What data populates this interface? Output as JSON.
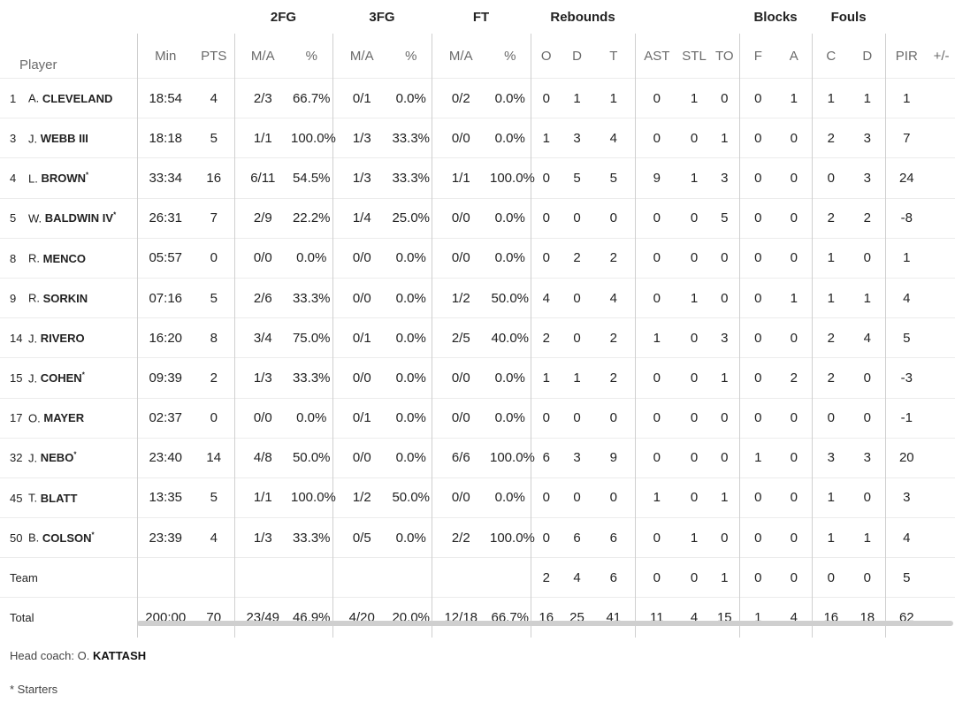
{
  "groups": {
    "fg2": "2FG",
    "fg3": "3FG",
    "ft": "FT",
    "reb": "Rebounds",
    "blk": "Blocks",
    "fouls": "Fouls"
  },
  "headers": {
    "player": "Player",
    "min": "Min",
    "pts": "PTS",
    "fg2_ma": "M/A",
    "fg2_pct": "%",
    "fg3_ma": "M/A",
    "fg3_pct": "%",
    "ft_ma": "M/A",
    "ft_pct": "%",
    "reb_o": "O",
    "reb_d": "D",
    "reb_t": "T",
    "ast": "AST",
    "stl": "STL",
    "to": "TO",
    "blk_f": "F",
    "blk_a": "A",
    "foul_c": "C",
    "foul_d": "D",
    "pir": "PIR",
    "pm": "+/-"
  },
  "players": [
    {
      "num": "1",
      "initial": "A.",
      "surname": "CLEVELAND",
      "star": "",
      "min": "18:54",
      "pts": "4",
      "fg2": "2/3",
      "fg2p": "66.7%",
      "fg3": "0/1",
      "fg3p": "0.0%",
      "ft": "0/2",
      "ftp": "0.0%",
      "o": "0",
      "d": "1",
      "t": "1",
      "ast": "0",
      "stl": "1",
      "to": "0",
      "bf": "0",
      "ba": "1",
      "fc": "1",
      "fd": "1",
      "pir": "1"
    },
    {
      "num": "3",
      "initial": "J.",
      "surname": "WEBB III",
      "star": "",
      "min": "18:18",
      "pts": "5",
      "fg2": "1/1",
      "fg2p": "100.0%",
      "fg3": "1/3",
      "fg3p": "33.3%",
      "ft": "0/0",
      "ftp": "0.0%",
      "o": "1",
      "d": "3",
      "t": "4",
      "ast": "0",
      "stl": "0",
      "to": "1",
      "bf": "0",
      "ba": "0",
      "fc": "2",
      "fd": "3",
      "pir": "7"
    },
    {
      "num": "4",
      "initial": "L.",
      "surname": "BROWN",
      "star": "*",
      "min": "33:34",
      "pts": "16",
      "fg2": "6/11",
      "fg2p": "54.5%",
      "fg3": "1/3",
      "fg3p": "33.3%",
      "ft": "1/1",
      "ftp": "100.0%",
      "o": "0",
      "d": "5",
      "t": "5",
      "ast": "9",
      "stl": "1",
      "to": "3",
      "bf": "0",
      "ba": "0",
      "fc": "0",
      "fd": "3",
      "pir": "24"
    },
    {
      "num": "5",
      "initial": "W.",
      "surname": "BALDWIN IV",
      "star": "*",
      "min": "26:31",
      "pts": "7",
      "fg2": "2/9",
      "fg2p": "22.2%",
      "fg3": "1/4",
      "fg3p": "25.0%",
      "ft": "0/0",
      "ftp": "0.0%",
      "o": "0",
      "d": "0",
      "t": "0",
      "ast": "0",
      "stl": "0",
      "to": "5",
      "bf": "0",
      "ba": "0",
      "fc": "2",
      "fd": "2",
      "pir": "-8"
    },
    {
      "num": "8",
      "initial": "R.",
      "surname": "MENCO",
      "star": "",
      "min": "05:57",
      "pts": "0",
      "fg2": "0/0",
      "fg2p": "0.0%",
      "fg3": "0/0",
      "fg3p": "0.0%",
      "ft": "0/0",
      "ftp": "0.0%",
      "o": "0",
      "d": "2",
      "t": "2",
      "ast": "0",
      "stl": "0",
      "to": "0",
      "bf": "0",
      "ba": "0",
      "fc": "1",
      "fd": "0",
      "pir": "1"
    },
    {
      "num": "9",
      "initial": "R.",
      "surname": "SORKIN",
      "star": "",
      "min": "07:16",
      "pts": "5",
      "fg2": "2/6",
      "fg2p": "33.3%",
      "fg3": "0/0",
      "fg3p": "0.0%",
      "ft": "1/2",
      "ftp": "50.0%",
      "o": "4",
      "d": "0",
      "t": "4",
      "ast": "0",
      "stl": "1",
      "to": "0",
      "bf": "0",
      "ba": "1",
      "fc": "1",
      "fd": "1",
      "pir": "4"
    },
    {
      "num": "14",
      "initial": "J.",
      "surname": "RIVERO",
      "star": "",
      "min": "16:20",
      "pts": "8",
      "fg2": "3/4",
      "fg2p": "75.0%",
      "fg3": "0/1",
      "fg3p": "0.0%",
      "ft": "2/5",
      "ftp": "40.0%",
      "o": "2",
      "d": "0",
      "t": "2",
      "ast": "1",
      "stl": "0",
      "to": "3",
      "bf": "0",
      "ba": "0",
      "fc": "2",
      "fd": "4",
      "pir": "5"
    },
    {
      "num": "15",
      "initial": "J.",
      "surname": "COHEN",
      "star": "*",
      "min": "09:39",
      "pts": "2",
      "fg2": "1/3",
      "fg2p": "33.3%",
      "fg3": "0/0",
      "fg3p": "0.0%",
      "ft": "0/0",
      "ftp": "0.0%",
      "o": "1",
      "d": "1",
      "t": "2",
      "ast": "0",
      "stl": "0",
      "to": "1",
      "bf": "0",
      "ba": "2",
      "fc": "2",
      "fd": "0",
      "pir": "-3"
    },
    {
      "num": "17",
      "initial": "O.",
      "surname": "MAYER",
      "star": "",
      "min": "02:37",
      "pts": "0",
      "fg2": "0/0",
      "fg2p": "0.0%",
      "fg3": "0/1",
      "fg3p": "0.0%",
      "ft": "0/0",
      "ftp": "0.0%",
      "o": "0",
      "d": "0",
      "t": "0",
      "ast": "0",
      "stl": "0",
      "to": "0",
      "bf": "0",
      "ba": "0",
      "fc": "0",
      "fd": "0",
      "pir": "-1"
    },
    {
      "num": "32",
      "initial": "J.",
      "surname": "NEBO",
      "star": "*",
      "min": "23:40",
      "pts": "14",
      "fg2": "4/8",
      "fg2p": "50.0%",
      "fg3": "0/0",
      "fg3p": "0.0%",
      "ft": "6/6",
      "ftp": "100.0%",
      "o": "6",
      "d": "3",
      "t": "9",
      "ast": "0",
      "stl": "0",
      "to": "0",
      "bf": "1",
      "ba": "0",
      "fc": "3",
      "fd": "3",
      "pir": "20"
    },
    {
      "num": "45",
      "initial": "T.",
      "surname": "BLATT",
      "star": "",
      "min": "13:35",
      "pts": "5",
      "fg2": "1/1",
      "fg2p": "100.0%",
      "fg3": "1/2",
      "fg3p": "50.0%",
      "ft": "0/0",
      "ftp": "0.0%",
      "o": "0",
      "d": "0",
      "t": "0",
      "ast": "1",
      "stl": "0",
      "to": "1",
      "bf": "0",
      "ba": "0",
      "fc": "1",
      "fd": "0",
      "pir": "3"
    },
    {
      "num": "50",
      "initial": "B.",
      "surname": "COLSON",
      "star": "*",
      "min": "23:39",
      "pts": "4",
      "fg2": "1/3",
      "fg2p": "33.3%",
      "fg3": "0/5",
      "fg3p": "0.0%",
      "ft": "2/2",
      "ftp": "100.0%",
      "o": "0",
      "d": "6",
      "t": "6",
      "ast": "0",
      "stl": "1",
      "to": "0",
      "bf": "0",
      "ba": "0",
      "fc": "1",
      "fd": "1",
      "pir": "4"
    }
  ],
  "team": {
    "label": "Team",
    "o": "2",
    "d": "4",
    "t": "6",
    "ast": "0",
    "stl": "0",
    "to": "1",
    "bf": "0",
    "ba": "0",
    "fc": "0",
    "fd": "0",
    "pir": "5"
  },
  "total": {
    "label": "Total",
    "min": "200:00",
    "pts": "70",
    "fg2": "23/49",
    "fg2p": "46.9%",
    "fg3": "4/20",
    "fg3p": "20.0%",
    "ft": "12/18",
    "ftp": "66.7%",
    "o": "16",
    "d": "25",
    "t": "41",
    "ast": "11",
    "stl": "4",
    "to": "15",
    "bf": "1",
    "ba": "4",
    "fc": "16",
    "fd": "18",
    "pir": "62"
  },
  "footer": {
    "coach_label": "Head coach: O.",
    "coach_name": "KATTASH",
    "starters_note": "* Starters"
  }
}
